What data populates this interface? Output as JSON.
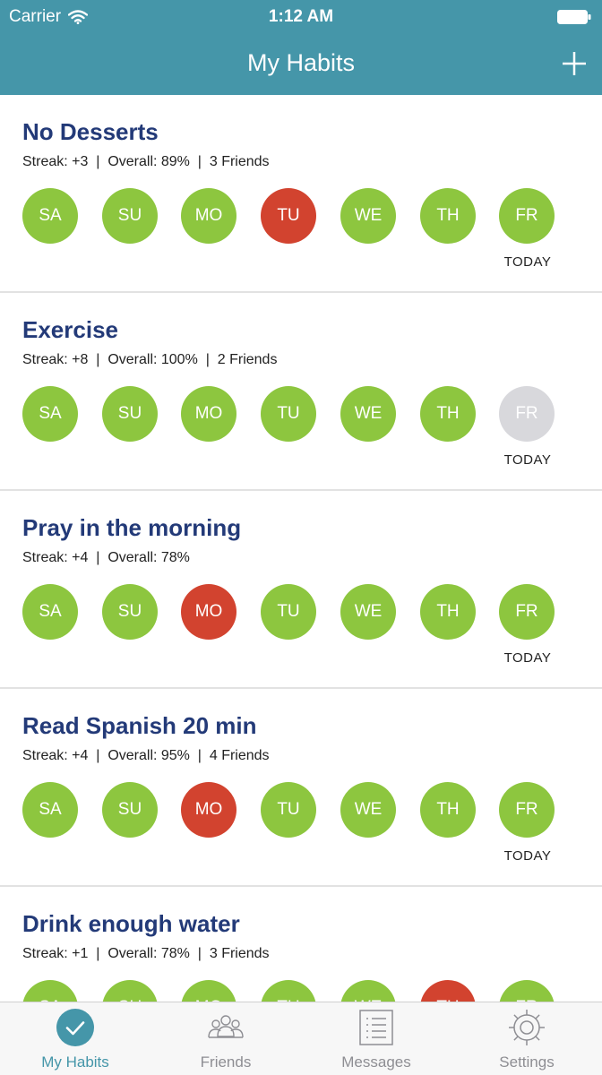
{
  "status_bar": {
    "carrier": "Carrier",
    "time": "1:12 AM"
  },
  "nav": {
    "title": "My Habits",
    "add_icon": "plus-icon"
  },
  "colors": {
    "header": "#4596a9",
    "done": "#8dc63f",
    "missed": "#d2432f",
    "pending": "#d8d8dc",
    "title": "#233a78"
  },
  "today_label": "TODAY",
  "habits": [
    {
      "title": "No Desserts",
      "stats": [
        "Streak: +3",
        "Overall: 89%",
        "3 Friends"
      ],
      "days": [
        {
          "label": "SA",
          "status": "done"
        },
        {
          "label": "SU",
          "status": "done"
        },
        {
          "label": "MO",
          "status": "done"
        },
        {
          "label": "TU",
          "status": "missed"
        },
        {
          "label": "WE",
          "status": "done"
        },
        {
          "label": "TH",
          "status": "done"
        },
        {
          "label": "FR",
          "status": "done"
        }
      ]
    },
    {
      "title": "Exercise",
      "stats": [
        "Streak: +8",
        "Overall: 100%",
        "2 Friends"
      ],
      "days": [
        {
          "label": "SA",
          "status": "done"
        },
        {
          "label": "SU",
          "status": "done"
        },
        {
          "label": "MO",
          "status": "done"
        },
        {
          "label": "TU",
          "status": "done"
        },
        {
          "label": "WE",
          "status": "done"
        },
        {
          "label": "TH",
          "status": "done"
        },
        {
          "label": "FR",
          "status": "pending"
        }
      ]
    },
    {
      "title": "Pray in the morning",
      "stats": [
        "Streak: +4",
        "Overall: 78%"
      ],
      "days": [
        {
          "label": "SA",
          "status": "done"
        },
        {
          "label": "SU",
          "status": "done"
        },
        {
          "label": "MO",
          "status": "missed"
        },
        {
          "label": "TU",
          "status": "done"
        },
        {
          "label": "WE",
          "status": "done"
        },
        {
          "label": "TH",
          "status": "done"
        },
        {
          "label": "FR",
          "status": "done"
        }
      ]
    },
    {
      "title": "Read Spanish 20 min",
      "stats": [
        "Streak: +4",
        "Overall: 95%",
        "4 Friends"
      ],
      "days": [
        {
          "label": "SA",
          "status": "done"
        },
        {
          "label": "SU",
          "status": "done"
        },
        {
          "label": "MO",
          "status": "missed"
        },
        {
          "label": "TU",
          "status": "done"
        },
        {
          "label": "WE",
          "status": "done"
        },
        {
          "label": "TH",
          "status": "done"
        },
        {
          "label": "FR",
          "status": "done"
        }
      ]
    },
    {
      "title": "Drink enough water",
      "stats": [
        "Streak: +1",
        "Overall: 78%",
        "3 Friends"
      ],
      "days": [
        {
          "label": "SA",
          "status": "done"
        },
        {
          "label": "SU",
          "status": "done"
        },
        {
          "label": "MO",
          "status": "done"
        },
        {
          "label": "TU",
          "status": "done"
        },
        {
          "label": "WE",
          "status": "done"
        },
        {
          "label": "TH",
          "status": "missed"
        },
        {
          "label": "FR",
          "status": "done"
        }
      ]
    }
  ],
  "tabs": [
    {
      "label": "My Habits",
      "icon": "checkmark-circle-icon",
      "active": true
    },
    {
      "label": "Friends",
      "icon": "people-icon",
      "active": false
    },
    {
      "label": "Messages",
      "icon": "list-icon",
      "active": false
    },
    {
      "label": "Settings",
      "icon": "gear-icon",
      "active": false
    }
  ]
}
